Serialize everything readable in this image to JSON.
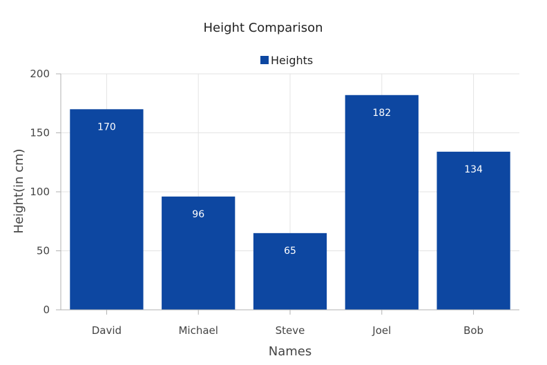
{
  "chart_data": {
    "type": "bar",
    "title": "Height Comparison",
    "xlabel": "Names",
    "ylabel": "Height(in cm)",
    "categories": [
      "David",
      "Michael",
      "Steve",
      "Joel",
      "Bob"
    ],
    "series": [
      {
        "name": "Heights",
        "values": [
          170,
          96,
          65,
          182,
          134
        ],
        "color": "#0d47a1"
      }
    ],
    "ylim": [
      0,
      200
    ],
    "yticks": [
      0,
      50,
      100,
      150,
      200
    ],
    "grid": true,
    "legend_position": "top-center",
    "data_labels": true
  }
}
